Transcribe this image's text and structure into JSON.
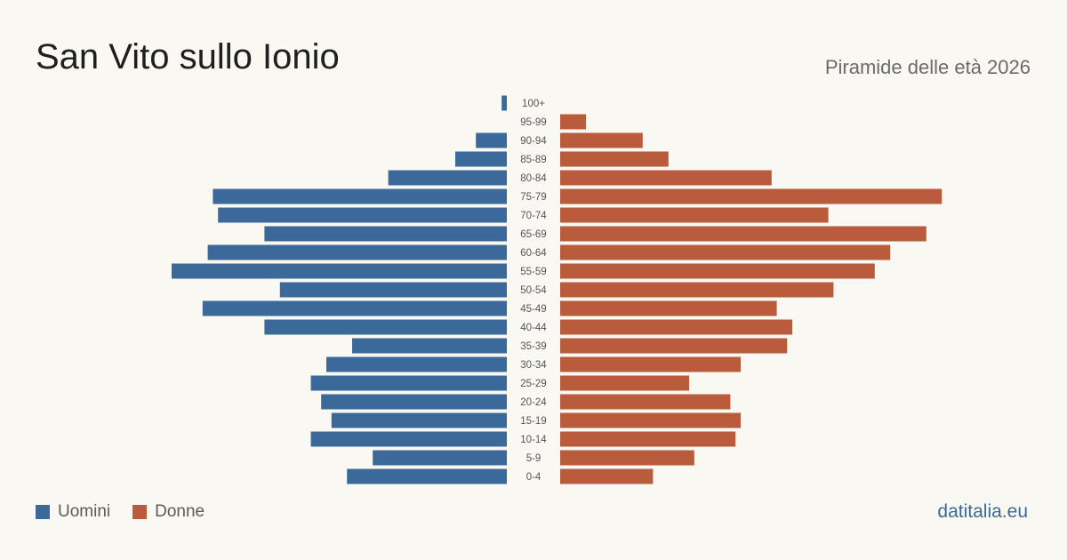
{
  "header": {
    "title": "San Vito sullo Ionio",
    "subtitle": "Piramide delle età 2026"
  },
  "legend": {
    "men_label": "Uomini",
    "women_label": "Donne"
  },
  "brand": "datitalia.eu",
  "colors": {
    "men": "#3b6a9a",
    "women": "#b95c3c",
    "background": "#faf8f3"
  },
  "chart_data": {
    "type": "bar",
    "orientation": "horizontal-pyramid",
    "categories": [
      "100+",
      "95-99",
      "90-94",
      "85-89",
      "80-84",
      "75-79",
      "70-74",
      "65-69",
      "60-64",
      "55-59",
      "50-54",
      "45-49",
      "40-44",
      "35-39",
      "30-34",
      "25-29",
      "20-24",
      "15-19",
      "10-14",
      "5-9",
      "0-4"
    ],
    "series": [
      {
        "name": "Uomini",
        "values": [
          1,
          0,
          6,
          10,
          23,
          57,
          56,
          47,
          58,
          65,
          44,
          59,
          47,
          30,
          35,
          38,
          36,
          34,
          38,
          26,
          31
        ]
      },
      {
        "name": "Donne",
        "values": [
          0,
          5,
          16,
          21,
          41,
          74,
          52,
          71,
          64,
          61,
          53,
          42,
          45,
          44,
          35,
          25,
          33,
          35,
          34,
          26,
          18
        ]
      }
    ],
    "legend_position": "bottom-left",
    "grid": false
  }
}
